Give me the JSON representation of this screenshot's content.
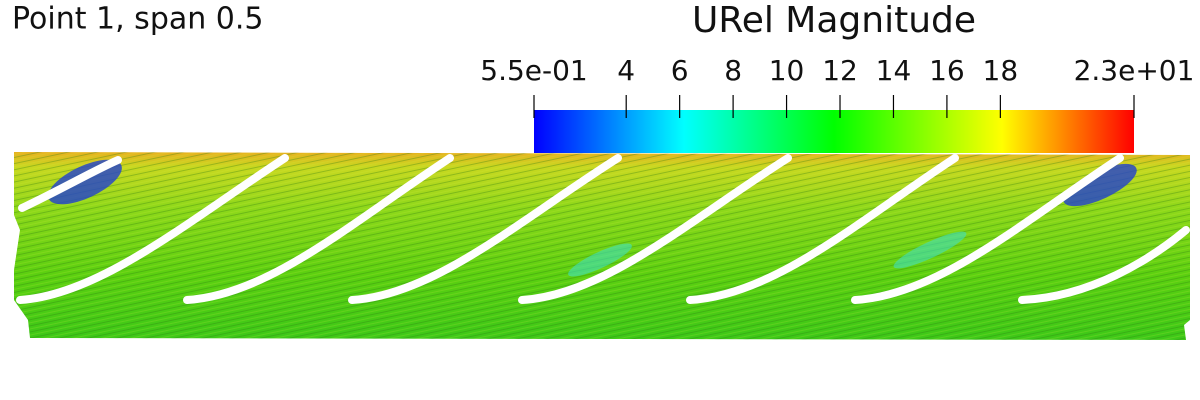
{
  "label": "Point 1, span 0.5",
  "colorbar": {
    "title": "URel Magnitude",
    "range": [
      0.55,
      23
    ],
    "ticks": [
      {
        "value": 0.55,
        "label": "5.5e-01"
      },
      4,
      6,
      8,
      10,
      12,
      14,
      16,
      18,
      {
        "value": 23,
        "label": "2.3e+01"
      }
    ]
  }
}
